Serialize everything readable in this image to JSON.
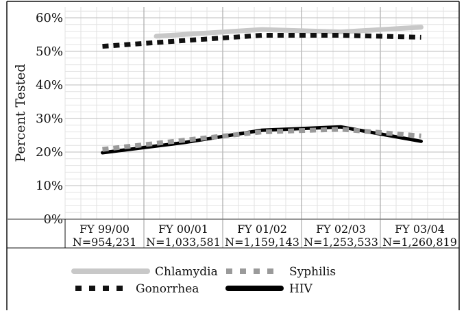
{
  "chart_data": {
    "type": "line",
    "title": "",
    "xlabel": "",
    "ylabel": "Percent Tested",
    "ylim": [
      0,
      60
    ],
    "y_ticks": [
      "0%",
      "10%",
      "20%",
      "30%",
      "40%",
      "50%",
      "60%"
    ],
    "grid": true,
    "legend_position": "bottom",
    "categories": [
      {
        "fy": "FY 99/00",
        "n": "N=954,231"
      },
      {
        "fy": "FY 00/01",
        "n": "N=1,033,581"
      },
      {
        "fy": "FY 01/02",
        "n": "N=1,159,143"
      },
      {
        "fy": "FY 02/03",
        "n": "N=1,253,533"
      },
      {
        "fy": "FY 03/04",
        "n": "N=1,260,819"
      }
    ],
    "series": [
      {
        "name": "Chlamydia",
        "color": "#c8c8c8",
        "style": "solid",
        "values": [
          null,
          54.5,
          56.5,
          55.8,
          57.2
        ]
      },
      {
        "name": "Syphilis",
        "color": "#9a9a9a",
        "style": "dashed",
        "values": [
          20.8,
          23.5,
          26.0,
          26.8,
          24.8
        ]
      },
      {
        "name": "Gonorrhea",
        "color": "#111111",
        "style": "dashed",
        "values": [
          51.5,
          53.2,
          54.8,
          54.8,
          54.2
        ]
      },
      {
        "name": "HIV",
        "color": "#000000",
        "style": "solid",
        "values": [
          19.8,
          22.8,
          26.5,
          27.5,
          23.2
        ]
      }
    ]
  }
}
